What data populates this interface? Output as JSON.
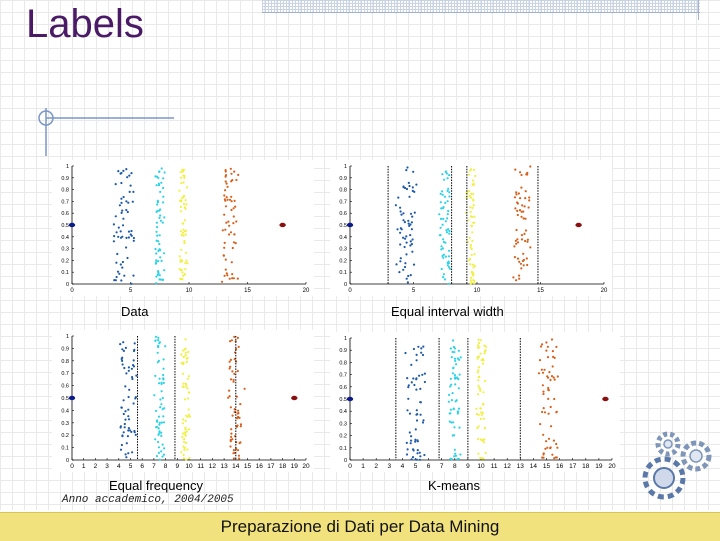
{
  "slide": {
    "title": "Labels",
    "footer_date": "Anno accademico, 2004/2005",
    "footer_text": "Preparazione di Dati per Data Mining"
  },
  "colors": {
    "title": "#4a1a66",
    "c1": "#1f5aa8",
    "c2": "#2bd3e6",
    "c3": "#f0f040",
    "c4": "#d95f1a",
    "outlier_left": "#0a1a8a",
    "outlier_right": "#8a1010",
    "footer_bg": "#f2e27d"
  },
  "chart_data": [
    {
      "type": "scatter",
      "title": "Data",
      "xlim": [
        0,
        20
      ],
      "ylim": [
        0,
        1
      ],
      "xticks": [
        "0",
        "5",
        "10",
        "15",
        "20"
      ],
      "yticks": [
        "0",
        "0.1",
        "0.2",
        "0.3",
        "0.4",
        "0.5",
        "0.6",
        "0.7",
        "0.8",
        "0.9",
        "1"
      ],
      "clusters": [
        {
          "center_x": 4.5,
          "spread": 1.0,
          "color": "c1"
        },
        {
          "center_x": 7.5,
          "spread": 0.5,
          "color": "c2"
        },
        {
          "center_x": 9.5,
          "spread": 0.4,
          "color": "c3"
        },
        {
          "center_x": 13.5,
          "spread": 0.8,
          "color": "c4"
        }
      ],
      "outliers": [
        {
          "x": 0,
          "y": 0.5,
          "color": "outlier_left"
        },
        {
          "x": 18,
          "y": 0.5,
          "color": "outlier_right"
        }
      ],
      "cut_points": []
    },
    {
      "type": "scatter",
      "title": "Equal interval width",
      "xlim": [
        0,
        20
      ],
      "ylim": [
        0,
        1
      ],
      "xticks": [
        "0",
        "5",
        "10",
        "15",
        "20"
      ],
      "yticks": [
        "0",
        "0.1",
        "0.2",
        "0.3",
        "0.4",
        "0.5",
        "0.6",
        "0.7",
        "0.8",
        "0.9",
        "1"
      ],
      "clusters": [
        {
          "center_x": 4.5,
          "spread": 1.0,
          "color": "c1"
        },
        {
          "center_x": 7.5,
          "spread": 0.5,
          "color": "c2"
        },
        {
          "center_x": 9.5,
          "spread": 0.4,
          "color": "c3"
        },
        {
          "center_x": 13.5,
          "spread": 0.8,
          "color": "c4"
        }
      ],
      "outliers": [
        {
          "x": 0,
          "y": 0.5,
          "color": "outlier_left"
        },
        {
          "x": 18,
          "y": 0.5,
          "color": "outlier_right"
        }
      ],
      "cut_points": [
        3,
        8,
        9.2,
        14.8
      ]
    },
    {
      "type": "scatter",
      "title": "Equal frequency",
      "xlim": [
        0,
        20
      ],
      "ylim": [
        0,
        1
      ],
      "xticks": [
        "0",
        "1",
        "2",
        "3",
        "4",
        "5",
        "6",
        "7",
        "8",
        "9",
        "10",
        "11",
        "12",
        "13",
        "14",
        "15",
        "16",
        "17",
        "18",
        "19",
        "20"
      ],
      "yticks": [
        "0",
        "0.1",
        "0.2",
        "0.3",
        "0.4",
        "0.5",
        "0.6",
        "0.7",
        "0.8",
        "0.9",
        "1"
      ],
      "clusters": [
        {
          "center_x": 4.8,
          "spread": 0.9,
          "color": "c1"
        },
        {
          "center_x": 7.5,
          "spread": 0.5,
          "color": "c2"
        },
        {
          "center_x": 9.7,
          "spread": 0.4,
          "color": "c3"
        },
        {
          "center_x": 14.0,
          "spread": 0.8,
          "color": "c4"
        }
      ],
      "outliers": [
        {
          "x": 0,
          "y": 0.5,
          "color": "outlier_left"
        },
        {
          "x": 19,
          "y": 0.5,
          "color": "outlier_right"
        }
      ],
      "cut_points": [
        5.6,
        8.8,
        14.0
      ]
    },
    {
      "type": "scatter",
      "title": "K-means",
      "xlim": [
        0,
        20
      ],
      "ylim": [
        0,
        1
      ],
      "xticks": [
        "0",
        "1",
        "2",
        "3",
        "4",
        "5",
        "6",
        "7",
        "8",
        "9",
        "10",
        "11",
        "12",
        "13",
        "14",
        "15",
        "16",
        "17",
        "18",
        "19",
        "20"
      ],
      "yticks": [
        "0",
        "0.1",
        "0.2",
        "0.3",
        "0.4",
        "0.5",
        "0.6",
        "0.7",
        "0.8",
        "0.9",
        "1"
      ],
      "clusters": [
        {
          "center_x": 5.0,
          "spread": 0.9,
          "color": "c1"
        },
        {
          "center_x": 8.0,
          "spread": 0.5,
          "color": "c2"
        },
        {
          "center_x": 10.0,
          "spread": 0.4,
          "color": "c3"
        },
        {
          "center_x": 15.2,
          "spread": 0.8,
          "color": "c4"
        }
      ],
      "outliers": [
        {
          "x": 0,
          "y": 0.5,
          "color": "outlier_left"
        },
        {
          "x": 19.5,
          "y": 0.5,
          "color": "outlier_right"
        }
      ],
      "cut_points": [
        3.5,
        6.8,
        9.0,
        13.0
      ]
    }
  ]
}
